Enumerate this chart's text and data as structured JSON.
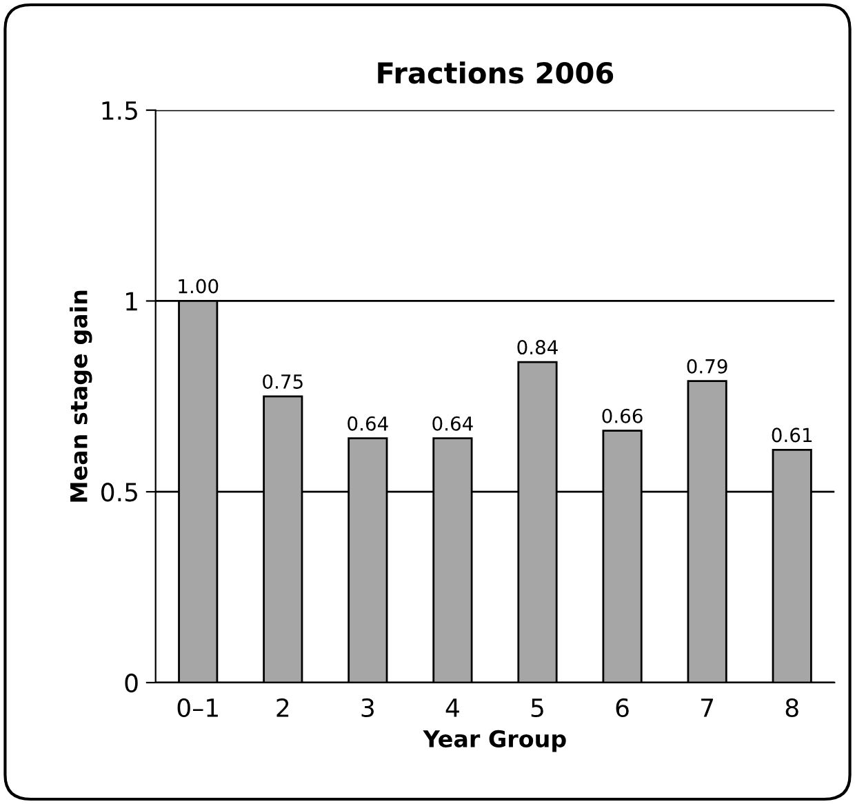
{
  "chart_data": {
    "type": "bar",
    "title": "Fractions 2006",
    "xlabel": "Year Group",
    "ylabel": "Mean stage gain",
    "categories": [
      "0–1",
      "2",
      "3",
      "4",
      "5",
      "6",
      "7",
      "8"
    ],
    "values": [
      1.0,
      0.75,
      0.64,
      0.64,
      0.84,
      0.66,
      0.79,
      0.61
    ],
    "value_labels": [
      "1.00",
      "0.75",
      "0.64",
      "0.64",
      "0.84",
      "0.66",
      "0.79",
      "0.61"
    ],
    "color": "#a6a6a6",
    "ylim": [
      0,
      1.5
    ],
    "yticks": [
      0,
      0.5,
      1,
      1.5
    ],
    "grid": "y"
  }
}
